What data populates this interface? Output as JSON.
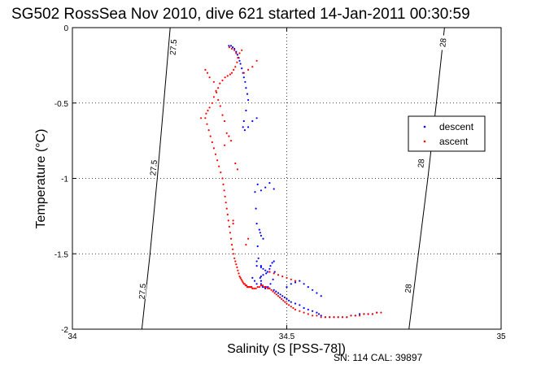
{
  "chart_data": {
    "type": "scatter",
    "title": "SG502 RossSea Nov 2010, dive 621 started 14-Jan-2011 00:30:59",
    "xlabel": "Salinity (S [PSS-78])",
    "ylabel": "Temperature (°C)",
    "xlim": [
      34,
      35
    ],
    "ylim": [
      -2,
      0
    ],
    "xticks": [
      34,
      34.5,
      35
    ],
    "xtick_labels": [
      "34",
      "34.5",
      "35"
    ],
    "yticks": [
      0,
      -0.5,
      -1,
      -1.5,
      -2
    ],
    "ytick_labels": [
      "0",
      "-0.5",
      "-1",
      "-1.5",
      "-2"
    ],
    "grid": true,
    "legend": "right",
    "footer": "SN: 114  CAL: 39897",
    "isopycnals": [
      {
        "label": "27.5",
        "points": [
          [
            34.228,
            0
          ],
          [
            34.213,
            -0.5
          ],
          [
            34.198,
            -1
          ],
          [
            34.181,
            -1.5
          ],
          [
            34.162,
            -2
          ]
        ],
        "label_positions": [
          [
            34.236,
            -0.13
          ],
          [
            34.19,
            -0.93
          ],
          [
            34.164,
            -1.75
          ]
        ]
      },
      {
        "label": "28",
        "points": [
          [
            34.868,
            0
          ],
          [
            34.849,
            -0.5
          ],
          [
            34.829,
            -1
          ],
          [
            34.807,
            -1.5
          ],
          [
            34.785,
            -2
          ]
        ],
        "label_positions": [
          [
            34.865,
            -0.1
          ],
          [
            34.814,
            -0.9
          ],
          [
            34.784,
            -1.73
          ]
        ]
      }
    ],
    "series": [
      {
        "name": "descent",
        "color": "#0000ff",
        "marker": "point",
        "x": [
          34.365,
          34.37,
          34.374,
          34.378,
          34.382,
          34.385,
          34.388,
          34.39,
          34.392,
          34.395,
          34.398,
          34.4,
          34.403,
          34.405,
          34.408,
          34.41,
          34.405,
          34.4,
          34.398,
          34.402,
          34.41,
          34.42,
          34.43,
          34.432,
          34.426,
          34.428,
          34.43,
          34.432,
          34.434,
          34.44,
          34.445,
          34.45,
          34.455,
          34.46,
          34.462,
          34.466,
          34.47,
          34.472,
          34.468,
          34.462,
          34.456,
          34.45,
          34.444,
          34.44,
          34.44,
          34.438,
          34.44,
          34.445,
          34.452,
          34.46,
          34.445,
          34.44,
          34.438,
          34.436,
          34.42,
          34.425,
          34.43,
          34.44,
          34.45,
          34.46,
          34.47,
          34.475,
          34.48,
          34.485,
          34.49,
          34.495,
          34.5,
          34.505,
          34.51,
          34.52,
          34.53,
          34.54,
          34.55,
          34.56,
          34.57,
          34.575,
          34.58,
          34.59,
          34.6,
          34.61,
          34.62,
          34.63,
          34.64,
          34.65,
          34.66,
          34.67,
          34.68,
          34.69,
          34.7,
          34.71,
          34.5,
          34.51,
          34.52,
          34.53,
          34.54,
          34.55,
          34.56,
          34.57,
          34.58,
          34.44,
          34.45,
          34.46,
          34.47,
          34.43,
          34.43,
          34.44
        ],
        "y": [
          -0.12,
          -0.12,
          -0.13,
          -0.14,
          -0.16,
          -0.18,
          -0.2,
          -0.22,
          -0.24,
          -0.27,
          -0.3,
          -0.33,
          -0.36,
          -0.4,
          -0.44,
          -0.48,
          -0.55,
          -0.62,
          -0.66,
          -0.68,
          -0.66,
          -0.62,
          -0.6,
          -1.04,
          -1.09,
          -1.2,
          -1.3,
          -1.45,
          -1.53,
          -1.58,
          -1.6,
          -1.61,
          -1.62,
          -1.6,
          -1.58,
          -1.56,
          -1.55,
          -1.62,
          -1.67,
          -1.7,
          -1.72,
          -1.73,
          -1.72,
          -1.7,
          -1.68,
          -1.66,
          -1.65,
          -1.64,
          -1.63,
          -1.62,
          -1.4,
          -1.38,
          -1.36,
          -1.34,
          -1.66,
          -1.68,
          -1.7,
          -1.71,
          -1.72,
          -1.73,
          -1.74,
          -1.75,
          -1.76,
          -1.77,
          -1.78,
          -1.79,
          -1.8,
          -1.81,
          -1.82,
          -1.83,
          -1.84,
          -1.86,
          -1.87,
          -1.88,
          -1.89,
          -1.9,
          -1.91,
          -1.92,
          -1.92,
          -1.92,
          -1.92,
          -1.92,
          -1.92,
          -1.91,
          -1.91,
          -1.9,
          -1.9,
          -1.9,
          -1.9,
          -1.89,
          -1.72,
          -1.7,
          -1.69,
          -1.68,
          -1.7,
          -1.72,
          -1.74,
          -1.76,
          -1.78,
          -1.08,
          -1.06,
          -1.03,
          -1.07,
          -1.55,
          -1.58,
          -1.59
        ]
      },
      {
        "name": "ascent",
        "color": "#ff0000",
        "marker": "point",
        "x": [
          34.366,
          34.372,
          34.378,
          34.382,
          34.386,
          34.384,
          34.38,
          34.376,
          34.372,
          34.368,
          34.362,
          34.356,
          34.35,
          34.344,
          34.34,
          34.336,
          34.33,
          34.326,
          34.32,
          34.316,
          34.312,
          34.31,
          34.314,
          34.318,
          34.322,
          34.326,
          34.33,
          34.334,
          34.338,
          34.342,
          34.346,
          34.35,
          34.352,
          34.354,
          34.356,
          34.358,
          34.36,
          34.362,
          34.364,
          34.366,
          34.368,
          34.37,
          34.372,
          34.374,
          34.376,
          34.378,
          34.38,
          34.382,
          34.384,
          34.386,
          34.388,
          34.39,
          34.392,
          34.394,
          34.396,
          34.398,
          34.4,
          34.402,
          34.404,
          34.406,
          34.408,
          34.41,
          34.412,
          34.414,
          34.416,
          34.418,
          34.42,
          34.424,
          34.428,
          34.432,
          34.436,
          34.44,
          34.444,
          34.448,
          34.452,
          34.456,
          34.46,
          34.464,
          34.468,
          34.472,
          34.476,
          34.48,
          34.484,
          34.488,
          34.492,
          34.496,
          34.5,
          34.505,
          34.51,
          34.515,
          34.52,
          34.53,
          34.54,
          34.55,
          34.56,
          34.57,
          34.58,
          34.59,
          34.6,
          34.61,
          34.62,
          34.63,
          34.64,
          34.65,
          34.66,
          34.67,
          34.68,
          34.69,
          34.7,
          34.71,
          34.72,
          34.46,
          34.47,
          34.48,
          34.49,
          34.5,
          34.51,
          34.52,
          34.4,
          34.41,
          34.42,
          34.43,
          34.39,
          34.395,
          34.38,
          34.385,
          34.375,
          34.375,
          34.37,
          34.365,
          34.36,
          34.355,
          34.355,
          34.35,
          34.345,
          34.34,
          34.335,
          34.33,
          34.32,
          34.315,
          34.31,
          34.3,
          34.41,
          34.405
        ],
        "y": [
          -0.13,
          -0.14,
          -0.15,
          -0.17,
          -0.2,
          -0.23,
          -0.26,
          -0.28,
          -0.3,
          -0.31,
          -0.32,
          -0.33,
          -0.35,
          -0.37,
          -0.4,
          -0.43,
          -0.46,
          -0.5,
          -0.53,
          -0.55,
          -0.57,
          -0.6,
          -0.64,
          -0.68,
          -0.72,
          -0.76,
          -0.8,
          -0.84,
          -0.88,
          -0.92,
          -0.96,
          -1,
          -1.04,
          -1.08,
          -1.12,
          -1.16,
          -1.2,
          -1.24,
          -1.28,
          -1.32,
          -1.36,
          -1.4,
          -1.44,
          -1.47,
          -1.5,
          -1.53,
          -1.55,
          -1.57,
          -1.59,
          -1.61,
          -1.63,
          -1.65,
          -1.66,
          -1.67,
          -1.68,
          -1.69,
          -1.7,
          -1.7,
          -1.71,
          -1.71,
          -1.72,
          -1.72,
          -1.72,
          -1.72,
          -1.72,
          -1.72,
          -1.73,
          -1.73,
          -1.73,
          -1.72,
          -1.72,
          -1.71,
          -1.71,
          -1.72,
          -1.72,
          -1.73,
          -1.73,
          -1.74,
          -1.75,
          -1.76,
          -1.77,
          -1.78,
          -1.79,
          -1.8,
          -1.81,
          -1.82,
          -1.83,
          -1.84,
          -1.85,
          -1.86,
          -1.87,
          -1.88,
          -1.89,
          -1.9,
          -1.91,
          -1.91,
          -1.92,
          -1.92,
          -1.92,
          -1.92,
          -1.92,
          -1.92,
          -1.92,
          -1.91,
          -1.91,
          -1.91,
          -1.9,
          -1.9,
          -1.9,
          -1.89,
          -1.89,
          -1.62,
          -1.63,
          -1.64,
          -1.65,
          -1.66,
          -1.67,
          -1.68,
          -0.3,
          -0.28,
          -0.26,
          -0.22,
          -0.17,
          -0.15,
          -0.9,
          -0.94,
          -1.28,
          -1.3,
          -0.75,
          -0.72,
          -0.7,
          -0.78,
          -0.62,
          -0.58,
          -0.52,
          -0.48,
          -0.42,
          -0.36,
          -0.33,
          -0.3,
          -0.28,
          -0.6,
          -1.4,
          -1.44
        ]
      }
    ]
  }
}
